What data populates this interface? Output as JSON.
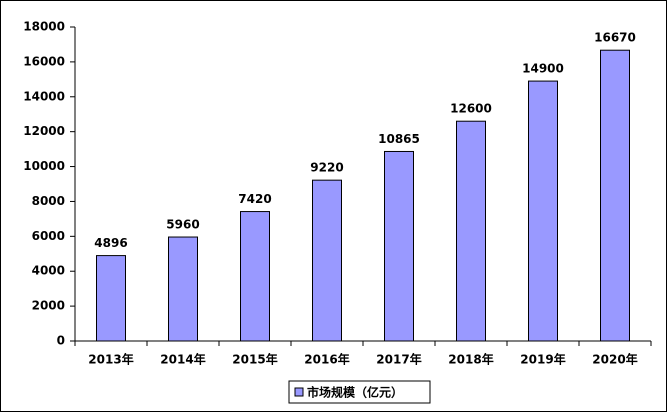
{
  "chart_data": {
    "type": "bar",
    "categories": [
      "2013年",
      "2014年",
      "2015年",
      "2016年",
      "2017年",
      "2018年",
      "2019年",
      "2020年"
    ],
    "series": [
      {
        "name": "市场规模（亿元）",
        "color": "#9999ff",
        "values": [
          4896,
          5960,
          7420,
          9220,
          10865,
          12600,
          14900,
          16670
        ]
      }
    ],
    "ylim": [
      0,
      18000
    ],
    "yticks": [
      0,
      2000,
      4000,
      6000,
      8000,
      10000,
      12000,
      14000,
      16000,
      18000
    ],
    "grid": false,
    "legend": "bottom",
    "data_labels": true
  }
}
